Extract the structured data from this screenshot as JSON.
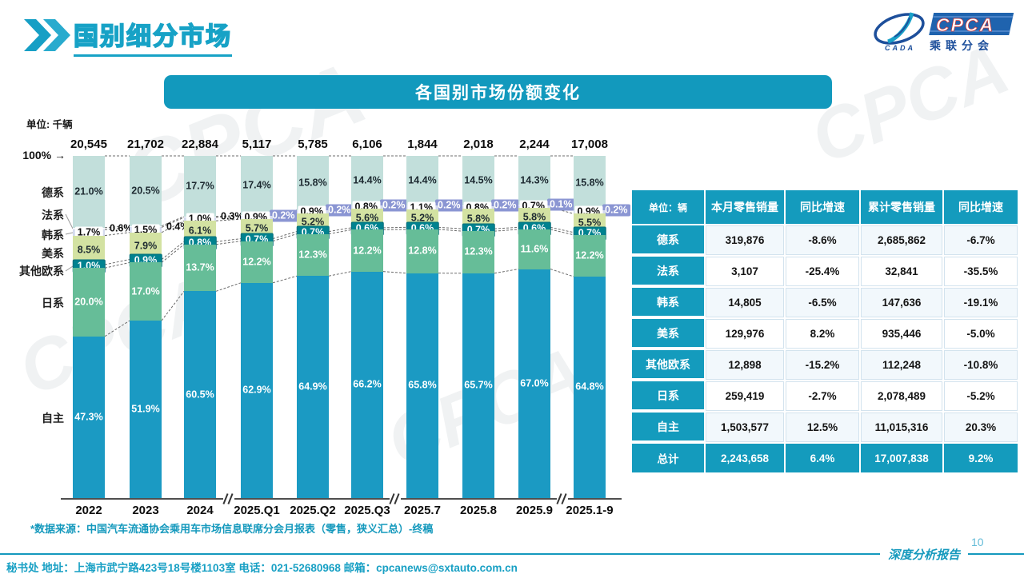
{
  "header": {
    "title": "国别细分市场",
    "logo": {
      "org_abbr": "CADA",
      "brand": "CPCA",
      "brand_cn": "乘联分会"
    }
  },
  "banner": {
    "title": "各国别市场份额变化"
  },
  "chart_data": {
    "type": "bar",
    "stacked": true,
    "unit_label": "单位: 千辆",
    "axis_top_label": "100%",
    "ylim": [
      0,
      100
    ],
    "categories": [
      "2022",
      "2023",
      "2024",
      "2025.Q1",
      "2025.Q2",
      "2025.Q3",
      "2025.7",
      "2025.8",
      "2025.9",
      "2025.1-9"
    ],
    "totals_thousand_units": [
      "20,545",
      "21,702",
      "22,884",
      "5,117",
      "5,785",
      "6,106",
      "1,844",
      "2,018",
      "2,244",
      "17,008"
    ],
    "axis_breaks_after": [
      "2024",
      "2025.Q3",
      "2025.9"
    ],
    "series": [
      {
        "name": "德系",
        "color": "#c2dfdb",
        "values": [
          21.0,
          20.5,
          17.7,
          17.4,
          15.8,
          14.4,
          14.4,
          14.5,
          14.3,
          15.8
        ]
      },
      {
        "name": "法系",
        "color": "#f3f5fa",
        "values": [
          0.6,
          0.4,
          0.3,
          0.2,
          0.2,
          0.2,
          0.2,
          0.2,
          0.1,
          0.2
        ]
      },
      {
        "name": "韩系",
        "color": "#d4daee",
        "values": [
          1.7,
          1.5,
          1.0,
          0.9,
          0.9,
          0.8,
          1.1,
          0.8,
          0.7,
          0.9
        ]
      },
      {
        "name": "美系",
        "color": "#d3e2a2",
        "values": [
          8.5,
          7.9,
          6.1,
          5.7,
          5.2,
          5.6,
          5.2,
          5.8,
          5.8,
          5.5
        ]
      },
      {
        "name": "其他欧系",
        "color": "#00828f",
        "values": [
          1.0,
          0.9,
          0.8,
          0.7,
          0.7,
          0.6,
          0.6,
          0.7,
          0.6,
          0.7
        ]
      },
      {
        "name": "日系",
        "color": "#66bd98",
        "values": [
          20.0,
          17.0,
          13.7,
          12.2,
          12.3,
          12.2,
          12.8,
          12.3,
          11.6,
          12.2
        ]
      },
      {
        "name": "自主",
        "color": "#1b9ac3",
        "values": [
          47.3,
          51.9,
          60.5,
          62.9,
          64.9,
          66.2,
          65.8,
          65.7,
          67.0,
          64.8
        ]
      }
    ],
    "badge_color_french": "#8b96d3"
  },
  "table": {
    "unit_header": "单位：辆",
    "columns": [
      "本月零售销量",
      "同比增速",
      "累计零售销量",
      "同比增速"
    ],
    "rows": [
      {
        "label": "德系",
        "values": [
          "319,876",
          "-8.6%",
          "2,685,862",
          "-6.7%"
        ]
      },
      {
        "label": "法系",
        "values": [
          "3,107",
          "-25.4%",
          "32,841",
          "-35.5%"
        ]
      },
      {
        "label": "韩系",
        "values": [
          "14,805",
          "-6.5%",
          "147,636",
          "-19.1%"
        ]
      },
      {
        "label": "美系",
        "values": [
          "129,976",
          "8.2%",
          "935,446",
          "-5.0%"
        ]
      },
      {
        "label": "其他欧系",
        "values": [
          "12,898",
          "-15.2%",
          "112,248",
          "-10.8%"
        ]
      },
      {
        "label": "日系",
        "values": [
          "259,419",
          "-2.7%",
          "2,078,489",
          "-5.2%"
        ]
      },
      {
        "label": "自主",
        "values": [
          "1,503,577",
          "12.5%",
          "11,015,316",
          "20.3%"
        ]
      },
      {
        "label": "总计",
        "values": [
          "2,243,658",
          "6.4%",
          "17,007,838",
          "9.2%"
        ],
        "highlight": true
      }
    ]
  },
  "source_note": "*数据来源：中国汽车流通协会乘用车市场信息联席分会月报表（零售，狭义汇总）-终稿",
  "footer": {
    "info": "秘书处  地址：上海市武宁路423号18号楼1103室 电话：021-52680968  邮箱：cpcanews@sxtauto.com.cn",
    "report_tag": "深度分析报告",
    "page_number": "10"
  },
  "watermark_text": "CPCA 乘联分会"
}
